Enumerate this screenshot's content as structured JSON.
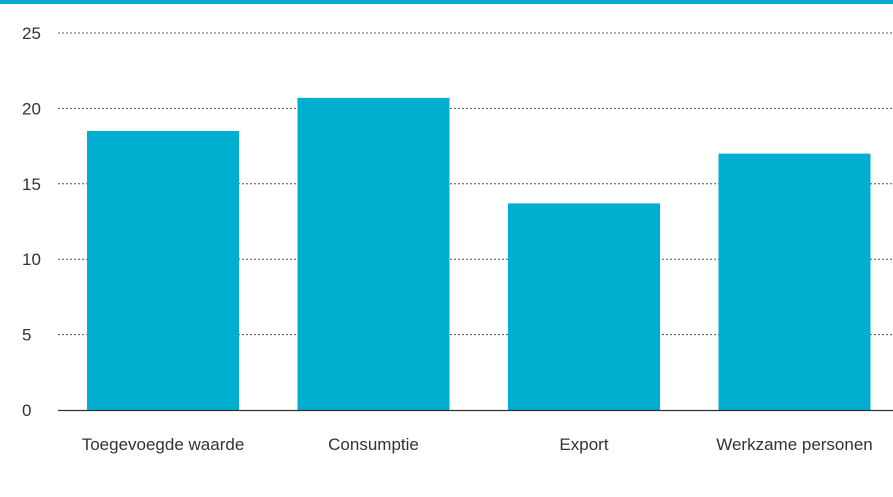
{
  "accent_color": "#00aed0",
  "chart_data": {
    "type": "bar",
    "title": "",
    "xlabel": "",
    "ylabel": "",
    "categories": [
      "Toegevoegde waarde",
      "Consumptie",
      "Export",
      "Werkzame personen"
    ],
    "values": [
      18.5,
      20.7,
      13.7,
      17.0
    ],
    "ylim": [
      0,
      25
    ],
    "yticks": [
      "0",
      "5",
      "10",
      "15",
      "20",
      "25"
    ],
    "grid": true,
    "bar_color": "#00aed0"
  }
}
